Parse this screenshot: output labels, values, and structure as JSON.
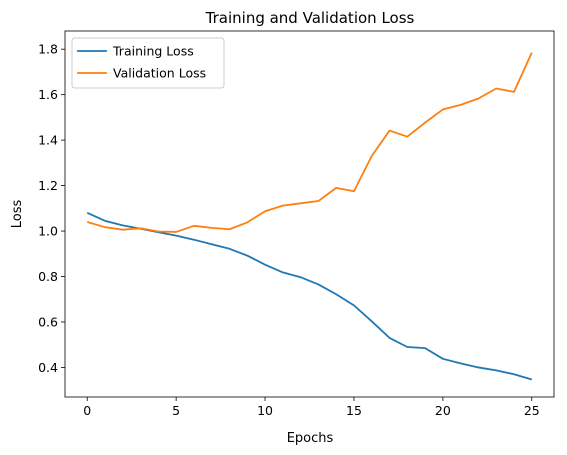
{
  "chart_data": {
    "type": "line",
    "title": "Training and Validation Loss",
    "xlabel": "Epochs",
    "ylabel": "Loss",
    "xlim": [
      -1.25,
      26.25
    ],
    "ylim": [
      0.27,
      1.88
    ],
    "xticks": [
      0,
      5,
      10,
      15,
      20,
      25
    ],
    "yticks": [
      0.4,
      0.6,
      0.8,
      1.0,
      1.2,
      1.4,
      1.6,
      1.8
    ],
    "ytick_labels": [
      "0.4",
      "0.6",
      "0.8",
      "1.0",
      "1.2",
      "1.4",
      "1.6",
      "1.8"
    ],
    "grid": false,
    "legend_position": "top-left",
    "x": [
      0,
      1,
      2,
      3,
      4,
      5,
      6,
      7,
      8,
      9,
      10,
      11,
      12,
      13,
      14,
      15,
      16,
      17,
      18,
      19,
      20,
      21,
      22,
      23,
      24,
      25
    ],
    "series": [
      {
        "name": "Training Loss",
        "color": "#1f77b4",
        "values": [
          1.08,
          1.045,
          1.025,
          1.01,
          0.995,
          0.98,
          0.962,
          0.942,
          0.922,
          0.892,
          0.852,
          0.818,
          0.797,
          0.765,
          0.722,
          0.673,
          0.603,
          0.53,
          0.49,
          0.485,
          0.438,
          0.418,
          0.4,
          0.387,
          0.37,
          0.347
        ]
      },
      {
        "name": "Validation Loss",
        "color": "#ff7f0e",
        "values": [
          1.04,
          1.017,
          1.006,
          1.012,
          0.998,
          0.996,
          1.023,
          1.014,
          1.008,
          1.038,
          1.087,
          1.112,
          1.122,
          1.132,
          1.19,
          1.175,
          1.33,
          1.442,
          1.415,
          1.477,
          1.535,
          1.555,
          1.583,
          1.627,
          1.612,
          1.785
        ]
      }
    ]
  }
}
